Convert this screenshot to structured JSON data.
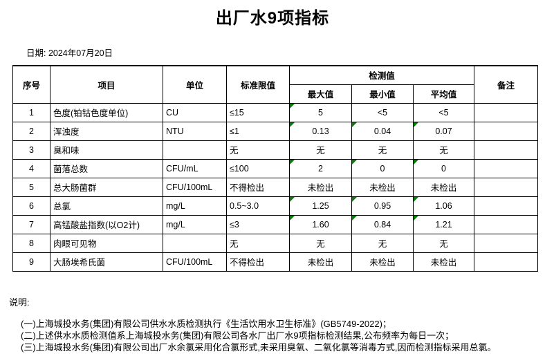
{
  "title": "出厂水9项指标",
  "date_label": "日期: 2024年07月20日",
  "colors": {
    "flag_green": "#008000",
    "border": "#000000",
    "background": "#ffffff",
    "text": "#000000"
  },
  "table": {
    "headers": {
      "index": "序号",
      "item": "项目",
      "unit": "单位",
      "limit": "标准限值",
      "detection": "检测值",
      "max": "最大值",
      "min": "最小值",
      "avg": "平均值",
      "remark": "备注"
    },
    "rows": [
      {
        "no": "1",
        "item": "色度(铂钴色度单位)",
        "unit": "CU",
        "limit": "≤15",
        "max": "5",
        "min": "<5",
        "avg": "<5",
        "remark": "",
        "flags": {
          "max": true,
          "min": false,
          "avg": false
        }
      },
      {
        "no": "2",
        "item": "浑浊度",
        "unit": "NTU",
        "limit": "≤1",
        "max": "0.13",
        "min": "0.04",
        "avg": "0.07",
        "remark": "",
        "flags": {
          "max": true,
          "min": true,
          "avg": true
        }
      },
      {
        "no": "3",
        "item": "臭和味",
        "unit": "",
        "limit": "无",
        "max": "无",
        "min": "无",
        "avg": "无",
        "remark": "",
        "flags": {
          "max": false,
          "min": false,
          "avg": false
        }
      },
      {
        "no": "4",
        "item": "菌落总数",
        "unit": "CFU/mL",
        "limit": "≤100",
        "max": "2",
        "min": "0",
        "avg": "0",
        "remark": "",
        "flags": {
          "max": true,
          "min": true,
          "avg": true
        }
      },
      {
        "no": "5",
        "item": "总大肠菌群",
        "unit": "CFU/100mL",
        "limit": "不得检出",
        "max": "未检出",
        "min": "未检出",
        "avg": "未检出",
        "remark": "",
        "flags": {
          "max": false,
          "min": false,
          "avg": false
        }
      },
      {
        "no": "6",
        "item": "总氯",
        "unit": "mg/L",
        "limit": "0.5~3.0",
        "max": "1.25",
        "min": "0.95",
        "avg": "1.06",
        "remark": "",
        "flags": {
          "max": true,
          "min": true,
          "avg": true
        }
      },
      {
        "no": "7",
        "item": "高锰酸盐指数(以O2计)",
        "unit": "mg/L",
        "limit": "≤3",
        "max": "1.60",
        "min": "0.84",
        "avg": "1.21",
        "remark": "",
        "flags": {
          "max": true,
          "min": true,
          "avg": true
        }
      },
      {
        "no": "8",
        "item": "肉眼可见物",
        "unit": "",
        "limit": "无",
        "max": "无",
        "min": "无",
        "avg": "无",
        "remark": "",
        "flags": {
          "max": false,
          "min": false,
          "avg": false
        }
      },
      {
        "no": "9",
        "item": "大肠埃希氏菌",
        "unit": "CFU/100mL",
        "limit": "不得检出",
        "max": "未检出",
        "min": "未检出",
        "avg": "未检出",
        "remark": "",
        "flags": {
          "max": false,
          "min": false,
          "avg": false
        }
      }
    ]
  },
  "notes": {
    "label": "说明:",
    "items": [
      "(一)上海城投水务(集团)有限公司供水水质检测执行《生活饮用水卫生标准》(GB5749-2022)；",
      "(二)上述供水水质检测值系上海城投水务(集团)有限公司各水厂出厂水9项指标检测结果,公布频率为每日一次；",
      "(三)上海城投水务(集团)有限公司出厂水余氯采用化合氯形式,未采用臭氧、二氧化氯等消毒方式,因而检测指标采用总氯。"
    ]
  }
}
